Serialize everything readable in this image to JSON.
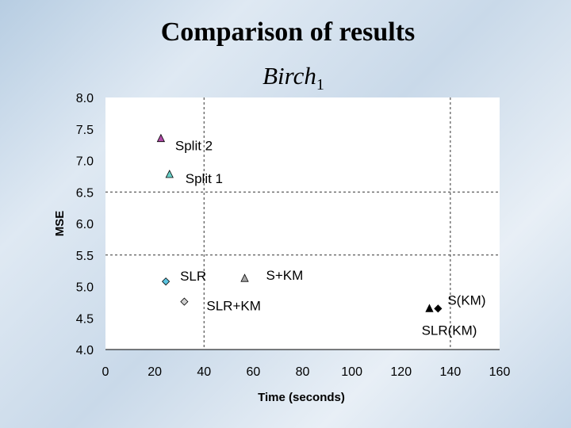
{
  "slide": {
    "title": "Comparison of results",
    "subtitle_main": "Birch",
    "subtitle_sub": "1"
  },
  "chart_data": {
    "type": "scatter",
    "xlabel": "Time (seconds)",
    "ylabel": "MSE",
    "xlim": [
      0,
      160
    ],
    "ylim": [
      4.0,
      8.0
    ],
    "xticks": [
      0,
      20,
      40,
      60,
      80,
      100,
      120,
      140,
      160
    ],
    "yticks": [
      4.0,
      4.5,
      5.0,
      5.5,
      6.0,
      6.5,
      7.0,
      7.5,
      8.0
    ],
    "dashed_gridlines": {
      "x": [
        40,
        140
      ],
      "y": [
        5.5,
        6.5
      ]
    },
    "points": [
      {
        "label": "Split 2",
        "x": 22.5,
        "y": 7.35,
        "marker": "triangle",
        "color": "#b04aa8"
      },
      {
        "label": "Split 1",
        "x": 26,
        "y": 6.78,
        "marker": "triangle",
        "color": "#6ad0c8"
      },
      {
        "label": "SLR",
        "x": 24.5,
        "y": 5.08,
        "marker": "diamond",
        "color": "#5bc4e0"
      },
      {
        "label": "S+KM",
        "x": 56.5,
        "y": 5.13,
        "marker": "triangle",
        "color": "#a8a8a8"
      },
      {
        "label": "SLR+KM",
        "x": 32,
        "y": 4.76,
        "marker": "diamond",
        "color": "#d0d0d0"
      },
      {
        "label": "S(KM)",
        "x": 135,
        "y": 4.65,
        "marker": "diamond",
        "color": "#000000"
      },
      {
        "label": "SLR(KM)",
        "x": 131.5,
        "y": 4.65,
        "marker": "triangle",
        "color": "#000000"
      }
    ]
  }
}
